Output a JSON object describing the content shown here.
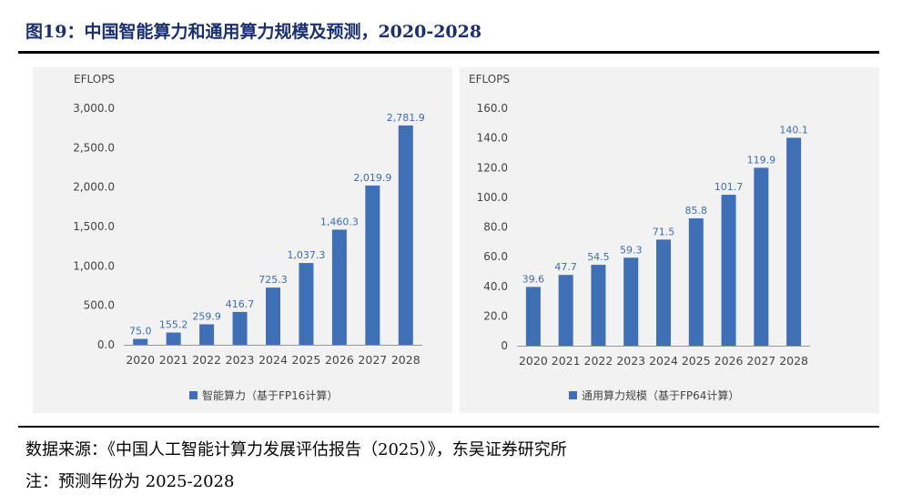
{
  "figure": {
    "title": "图19：中国智能算力和通用算力规模及预测，2020-2028",
    "source": "数据来源：《中国人工智能计算力发展评估报告（2025）》，东吴证券研究所",
    "note": "注：预测年份为 2025-2028"
  },
  "colors": {
    "bar": "#3f6fb4",
    "value_label": "#3c6db0",
    "axis": "#999999",
    "title": "#1a2f6e"
  },
  "chart_data": [
    {
      "type": "bar",
      "unit_label": "EFLOPS",
      "categories": [
        "2020",
        "2021",
        "2022",
        "2023",
        "2024",
        "2025",
        "2026",
        "2027",
        "2028"
      ],
      "series": [
        {
          "name": "智能算力（基于FP16计算）",
          "values": [
            75.0,
            155.2,
            259.9,
            416.7,
            725.3,
            1037.3,
            1460.3,
            2019.9,
            2781.9
          ],
          "labels": [
            "75.0",
            "155.2",
            "259.9",
            "416.7",
            "725.3",
            "1,037.3",
            "1,460.3",
            "2,019.9",
            "2,781.9"
          ]
        }
      ],
      "ylim": [
        0,
        3000
      ],
      "yticks": [
        0,
        500,
        1000,
        1500,
        2000,
        2500,
        3000
      ],
      "ytick_labels": [
        "0.0",
        "500.0",
        "1,000.0",
        "1,500.0",
        "2,000.0",
        "2,500.0",
        "3,000.0"
      ],
      "grid": false,
      "legend_position": "bottom-center"
    },
    {
      "type": "bar",
      "unit_label": "EFLOPS",
      "categories": [
        "2020",
        "2021",
        "2022",
        "2023",
        "2024",
        "2025",
        "2026",
        "2027",
        "2028"
      ],
      "series": [
        {
          "name": "通用算力规模（基于FP64计算）",
          "values": [
            39.6,
            47.7,
            54.5,
            59.3,
            71.5,
            85.8,
            101.7,
            119.9,
            140.1
          ],
          "labels": [
            "39.6",
            "47.7",
            "54.5",
            "59.3",
            "71.5",
            "85.8",
            "101.7",
            "119.9",
            "140.1"
          ]
        }
      ],
      "ylim": [
        0,
        160
      ],
      "yticks": [
        0,
        20,
        40,
        60,
        80,
        100,
        120,
        140,
        160
      ],
      "ytick_labels": [
        "0",
        "20.0",
        "40.0",
        "60.0",
        "80.0",
        "100.0",
        "120.0",
        "140.0",
        "160.0"
      ],
      "grid": false,
      "legend_position": "bottom-center"
    }
  ]
}
